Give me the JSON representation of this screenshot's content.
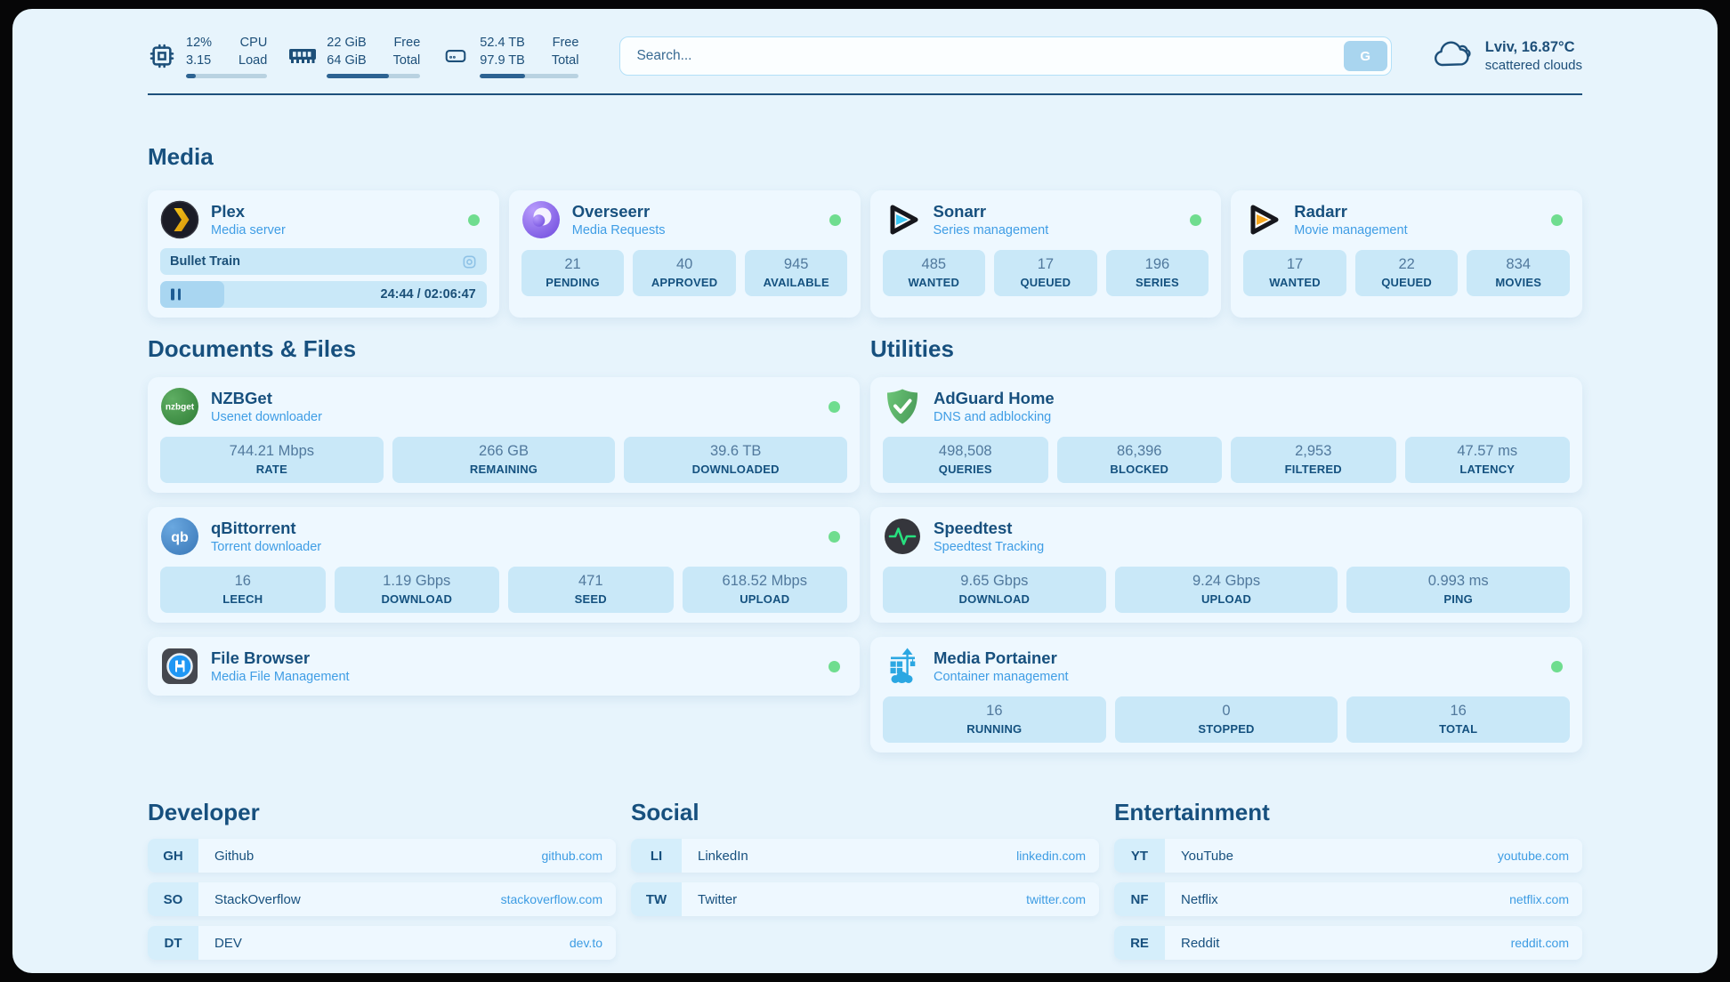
{
  "theme": {
    "page_bg": "#e7f4fc",
    "card_bg": "#eef8ff",
    "box_bg": "#c9e8f8",
    "navy": "#17507e",
    "subtitle_blue": "#3f9de5",
    "link_blue": "#3d9ce3",
    "status_green": "#6fdd8f",
    "progress_fill": "#2d6392"
  },
  "header": {
    "stats": [
      {
        "icon": "cpu-icon",
        "values": [
          "12%",
          "3.15"
        ],
        "labels": [
          "CPU",
          "Load"
        ],
        "progress": 12
      },
      {
        "icon": "ram-icon",
        "values": [
          "22 GiB",
          "64 GiB"
        ],
        "labels": [
          "Free",
          "Total"
        ],
        "progress": 66
      },
      {
        "icon": "disk-icon",
        "values": [
          "52.4 TB",
          "97.9 TB"
        ],
        "labels": [
          "Free",
          "Total"
        ],
        "progress": 46
      }
    ],
    "search": {
      "placeholder": "Search...",
      "button": "G"
    },
    "weather": {
      "icon": "cloud-icon",
      "location": "Lviv, 16.87°C",
      "condition": "scattered clouds"
    }
  },
  "icons": {
    "nzbget_text": "nzbget",
    "qb_text": "qb"
  },
  "sections": {
    "media": {
      "title": "Media",
      "plex": {
        "name": "Plex",
        "subtitle": "Media server",
        "icon": "plex-icon",
        "status": "online",
        "now_playing": "Bullet Train",
        "time": "24:44 / 02:06:47",
        "progress_pct": 19.5
      },
      "overseerr": {
        "name": "Overseerr",
        "subtitle": "Media Requests",
        "icon": "overseerr-icon",
        "status": "online",
        "stats": [
          {
            "value": "21",
            "label": "PENDING"
          },
          {
            "value": "40",
            "label": "APPROVED"
          },
          {
            "value": "945",
            "label": "AVAILABLE"
          }
        ]
      },
      "sonarr": {
        "name": "Sonarr",
        "subtitle": "Series management",
        "icon": "sonarr-icon",
        "status": "online",
        "stats": [
          {
            "value": "485",
            "label": "WANTED"
          },
          {
            "value": "17",
            "label": "QUEUED"
          },
          {
            "value": "196",
            "label": "SERIES"
          }
        ]
      },
      "radarr": {
        "name": "Radarr",
        "subtitle": "Movie management",
        "icon": "radarr-icon",
        "status": "online",
        "stats": [
          {
            "value": "17",
            "label": "WANTED"
          },
          {
            "value": "22",
            "label": "QUEUED"
          },
          {
            "value": "834",
            "label": "MOVIES"
          }
        ]
      }
    },
    "documents": {
      "title": "Documents & Files",
      "nzbget": {
        "name": "NZBGet",
        "subtitle": "Usenet downloader",
        "icon": "nzbget-icon",
        "status": "online",
        "stats": [
          {
            "value": "744.21 Mbps",
            "label": "RATE"
          },
          {
            "value": "266 GB",
            "label": "REMAINING"
          },
          {
            "value": "39.6 TB",
            "label": "DOWNLOADED"
          }
        ]
      },
      "qbittorrent": {
        "name": "qBittorrent",
        "subtitle": "Torrent downloader",
        "icon": "qbittorrent-icon",
        "status": "online",
        "stats": [
          {
            "value": "16",
            "label": "LEECH"
          },
          {
            "value": "1.19 Gbps",
            "label": "DOWNLOAD"
          },
          {
            "value": "471",
            "label": "SEED"
          },
          {
            "value": "618.52 Mbps",
            "label": "UPLOAD"
          }
        ]
      },
      "filebrowser": {
        "name": "File Browser",
        "subtitle": "Media File Management",
        "icon": "filebrowser-icon",
        "status": "online"
      }
    },
    "utilities": {
      "title": "Utilities",
      "adguard": {
        "name": "AdGuard Home",
        "subtitle": "DNS and adblocking",
        "icon": "adguard-icon",
        "stats": [
          {
            "value": "498,508",
            "label": "QUERIES"
          },
          {
            "value": "86,396",
            "label": "BLOCKED"
          },
          {
            "value": "2,953",
            "label": "FILTERED"
          },
          {
            "value": "47.57 ms",
            "label": "LATENCY"
          }
        ]
      },
      "speedtest": {
        "name": "Speedtest",
        "subtitle": "Speedtest Tracking",
        "icon": "speedtest-icon",
        "stats": [
          {
            "value": "9.65 Gbps",
            "label": "DOWNLOAD"
          },
          {
            "value": "9.24 Gbps",
            "label": "UPLOAD"
          },
          {
            "value": "0.993 ms",
            "label": "PING"
          }
        ]
      },
      "portainer": {
        "name": "Media Portainer",
        "subtitle": "Container management",
        "icon": "portainer-icon",
        "status": "online",
        "stats": [
          {
            "value": "16",
            "label": "RUNNING"
          },
          {
            "value": "0",
            "label": "STOPPED"
          },
          {
            "value": "16",
            "label": "TOTAL"
          }
        ]
      }
    },
    "developer": {
      "title": "Developer",
      "links": [
        {
          "abbr": "GH",
          "name": "Github",
          "url": "github.com"
        },
        {
          "abbr": "SO",
          "name": "StackOverflow",
          "url": "stackoverflow.com"
        },
        {
          "abbr": "DT",
          "name": "DEV",
          "url": "dev.to"
        }
      ]
    },
    "social": {
      "title": "Social",
      "links": [
        {
          "abbr": "LI",
          "name": "LinkedIn",
          "url": "linkedin.com"
        },
        {
          "abbr": "TW",
          "name": "Twitter",
          "url": "twitter.com"
        }
      ]
    },
    "entertainment": {
      "title": "Entertainment",
      "links": [
        {
          "abbr": "YT",
          "name": "YouTube",
          "url": "youtube.com"
        },
        {
          "abbr": "NF",
          "name": "Netflix",
          "url": "netflix.com"
        },
        {
          "abbr": "RE",
          "name": "Reddit",
          "url": "reddit.com"
        }
      ]
    }
  }
}
